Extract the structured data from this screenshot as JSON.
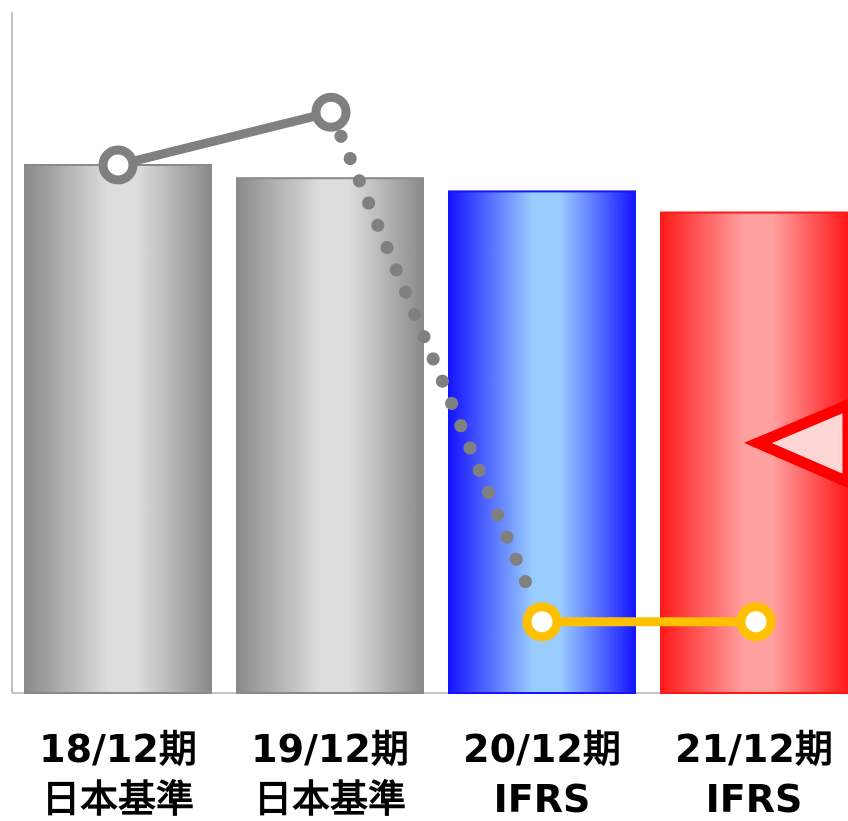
{
  "chart_data": {
    "type": "bar",
    "title": "",
    "xlabel": "",
    "ylabel": "",
    "categories": [
      {
        "period": "18/12期",
        "standard": "日本基準"
      },
      {
        "period": "19/12期",
        "standard": "日本基準"
      },
      {
        "period": "20/12期",
        "standard": "IFRS"
      },
      {
        "period": "21/12期",
        "standard": "IFRS"
      }
    ],
    "ylim": [
      0,
      100
    ],
    "grid": false,
    "legend": "none",
    "series": [
      {
        "kind": "bar",
        "values": [
          100,
          97.5,
          95,
          91
        ],
        "colors": [
          "#8a8a8a",
          "#8a8a8a",
          "#1414ff",
          "#ff1a1a"
        ],
        "highlight_colors": [
          "#dddddd",
          "#dddddd",
          "#99ccff",
          "#ffa0a0"
        ]
      },
      {
        "kind": "line",
        "values": [
          100,
          110,
          13.5,
          13.5
        ],
        "segment_styles": [
          "solid",
          "dotted",
          "solid"
        ],
        "segment_colors": [
          "#808080",
          "#808080",
          "#ffc000"
        ],
        "marker_colors": [
          "#808080",
          "#808080",
          "#ffc000",
          "#ffc000"
        ]
      }
    ],
    "annotation": {
      "shape": "callout-arrow",
      "color": "#ff0000",
      "fill": "#ffd6d6"
    }
  }
}
